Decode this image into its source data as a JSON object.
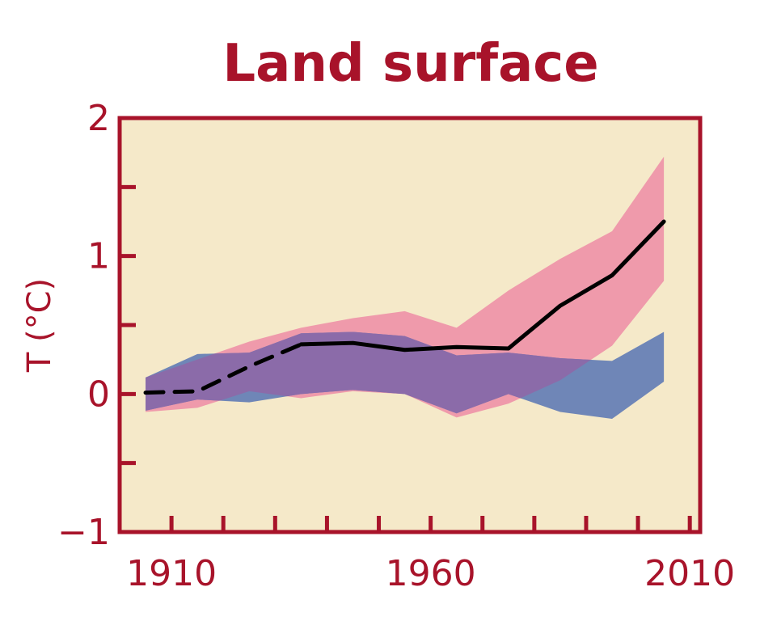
{
  "colors": {
    "accent": "#a8132a",
    "plot_background": "#f5e9c9",
    "observed_line": "#000000",
    "band_pink": "#ef9aab",
    "band_blue": "#6f86b7",
    "overlap": "#8b6ba9"
  },
  "chart_data": {
    "type": "line",
    "title": "Land surface",
    "xlabel": "",
    "ylabel": "T (°C)",
    "xlim": [
      1900,
      2012
    ],
    "ylim": [
      -1,
      2
    ],
    "x_ticks": [
      1910,
      1960,
      2010
    ],
    "y_ticks": [
      -1,
      0,
      1,
      2
    ],
    "y_minor_ticks": [
      -0.5,
      0.5,
      1.5
    ],
    "x_minor_ticks": [
      1920,
      1930,
      1940,
      1950,
      1970,
      1980,
      1990,
      2000
    ],
    "grid": false,
    "legend": "none",
    "series": [
      {
        "style": "band",
        "color": "pink",
        "x": [
          1905,
          1915,
          1925,
          1935,
          1945,
          1955,
          1965,
          1975,
          1985,
          1995,
          2005
        ],
        "upper": [
          0.12,
          0.25,
          0.38,
          0.48,
          0.55,
          0.6,
          0.48,
          0.75,
          0.98,
          1.18,
          1.72
        ],
        "lower": [
          -0.13,
          -0.1,
          0.02,
          -0.03,
          0.02,
          0.0,
          -0.17,
          -0.07,
          0.1,
          0.35,
          0.82
        ]
      },
      {
        "style": "band",
        "color": "blue",
        "x": [
          1905,
          1915,
          1925,
          1935,
          1945,
          1955,
          1965,
          1975,
          1985,
          1995,
          2005
        ],
        "upper": [
          0.12,
          0.29,
          0.3,
          0.44,
          0.45,
          0.42,
          0.28,
          0.3,
          0.26,
          0.24,
          0.45
        ],
        "lower": [
          -0.12,
          -0.04,
          -0.06,
          0.0,
          0.03,
          0.0,
          -0.14,
          0.0,
          -0.13,
          -0.18,
          0.09
        ]
      },
      {
        "style": "dashed",
        "color": "black",
        "x": [
          1905,
          1915,
          1925,
          1935
        ],
        "values": [
          0.01,
          0.02,
          0.2,
          0.36
        ]
      },
      {
        "style": "solid",
        "color": "black",
        "x": [
          1935,
          1945,
          1955,
          1965,
          1975,
          1985,
          1995,
          2005
        ],
        "values": [
          0.36,
          0.37,
          0.32,
          0.34,
          0.33,
          0.64,
          0.86,
          1.25
        ]
      }
    ]
  }
}
